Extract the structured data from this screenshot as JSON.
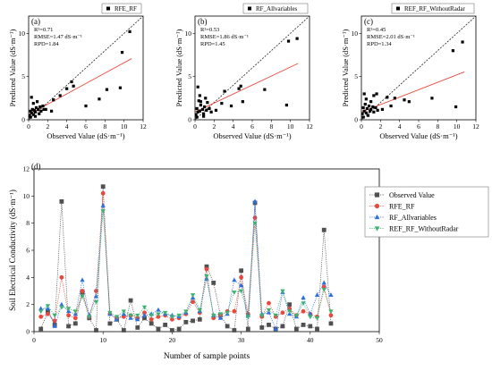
{
  "chart_data": [
    {
      "id": "a",
      "type": "scatter",
      "panel_label": "(a)",
      "legend": "RFE_RF",
      "stats": [
        "R²=0.71",
        "RMSE=1.47 dS·m⁻¹",
        "RPD=1.84"
      ],
      "xlabel": "Observed Value (dS·m⁻¹)",
      "ylabel": "Predicted Value (dS·m⁻¹)",
      "xlim": [
        0,
        12
      ],
      "ylim": [
        0,
        12
      ],
      "xticks": [
        0,
        2,
        4,
        6,
        8,
        10,
        12
      ],
      "yticks": [
        0,
        5,
        10
      ],
      "one_to_one_line": true,
      "fit_line": {
        "slope": 0.6,
        "intercept": 0.6,
        "color": "#e8493e"
      },
      "points": [
        [
          0.1,
          0.5
        ],
        [
          0.2,
          1.0
        ],
        [
          0.3,
          0.8
        ],
        [
          0.4,
          1.2
        ],
        [
          0.5,
          0.6
        ],
        [
          0.6,
          1.1
        ],
        [
          0.7,
          0.9
        ],
        [
          0.8,
          1.4
        ],
        [
          1.0,
          1.2
        ],
        [
          1.1,
          0.7
        ],
        [
          1.2,
          1.5
        ],
        [
          1.3,
          1.0
        ],
        [
          1.5,
          1.6
        ],
        [
          1.6,
          1.2
        ],
        [
          0.3,
          2.6
        ],
        [
          0.5,
          1.9
        ],
        [
          0.9,
          2.1
        ],
        [
          1.8,
          1.2
        ],
        [
          2.4,
          1.0
        ],
        [
          2.6,
          2.3
        ],
        [
          3.3,
          2.8
        ],
        [
          4.0,
          3.6
        ],
        [
          4.5,
          4.4
        ],
        [
          4.7,
          3.9
        ],
        [
          6.0,
          1.6
        ],
        [
          7.4,
          2.4
        ],
        [
          8.2,
          3.5
        ],
        [
          9.6,
          3.7
        ],
        [
          9.8,
          7.8
        ],
        [
          10.6,
          10.2
        ],
        [
          0.2,
          0.3
        ],
        [
          0.7,
          0.4
        ]
      ]
    },
    {
      "id": "b",
      "type": "scatter",
      "panel_label": "(b)",
      "legend": "RF_Allvariables",
      "stats": [
        "R²=0.53",
        "RMSE=1.86 dS·m⁻¹",
        "RPD=1.45"
      ],
      "xlabel": "Observed Value (dS·m⁻¹)",
      "ylabel": "Predicted Value (dS·m⁻¹)",
      "xlim": [
        0,
        12
      ],
      "ylim": [
        0,
        12
      ],
      "xticks": [
        0,
        2,
        4,
        6,
        8,
        10,
        12
      ],
      "yticks": [
        0,
        5,
        10
      ],
      "one_to_one_line": true,
      "fit_line": {
        "slope": 0.52,
        "intercept": 0.9,
        "color": "#e8493e"
      },
      "points": [
        [
          0.1,
          0.6
        ],
        [
          0.2,
          1.3
        ],
        [
          0.3,
          0.9
        ],
        [
          0.4,
          2.2
        ],
        [
          0.5,
          1.0
        ],
        [
          0.6,
          1.7
        ],
        [
          0.8,
          1.2
        ],
        [
          0.9,
          0.7
        ],
        [
          1.0,
          1.5
        ],
        [
          1.2,
          1.1
        ],
        [
          1.3,
          2.0
        ],
        [
          1.5,
          1.3
        ],
        [
          1.7,
          0.9
        ],
        [
          0.3,
          3.8
        ],
        [
          0.5,
          2.8
        ],
        [
          0.6,
          2.1
        ],
        [
          1.1,
          2.5
        ],
        [
          2.2,
          1.1
        ],
        [
          2.8,
          1.9
        ],
        [
          3.1,
          3.3
        ],
        [
          3.8,
          1.6
        ],
        [
          4.6,
          3.6
        ],
        [
          4.8,
          3.9
        ],
        [
          5.0,
          2.1
        ],
        [
          7.3,
          3.5
        ],
        [
          9.6,
          1.7
        ],
        [
          9.8,
          9.1
        ],
        [
          10.7,
          9.4
        ],
        [
          0.2,
          0.3
        ],
        [
          0.9,
          0.4
        ]
      ]
    },
    {
      "id": "c",
      "type": "scatter",
      "panel_label": "(c)",
      "legend": "REF_RF_WithoutRadar",
      "stats": [
        "R²=0.45",
        "RMSE=2.01 dS·m⁻¹",
        "RPD=1.34"
      ],
      "xlabel": "Observed Value (dS·m⁻¹)",
      "ylabel": "Predicted Value (dS·m⁻¹)",
      "xlim": [
        0,
        12
      ],
      "ylim": [
        0,
        12
      ],
      "xticks": [
        0,
        2,
        4,
        6,
        8,
        10,
        12
      ],
      "yticks": [
        0,
        5,
        10
      ],
      "one_to_one_line": true,
      "fit_line": {
        "slope": 0.43,
        "intercept": 0.9,
        "color": "#e8493e"
      },
      "points": [
        [
          0.1,
          0.7
        ],
        [
          0.2,
          1.4
        ],
        [
          0.3,
          1.0
        ],
        [
          0.4,
          1.8
        ],
        [
          0.5,
          0.8
        ],
        [
          0.6,
          1.3
        ],
        [
          0.8,
          1.6
        ],
        [
          0.9,
          1.0
        ],
        [
          1.0,
          1.2
        ],
        [
          1.2,
          1.5
        ],
        [
          1.3,
          0.9
        ],
        [
          1.5,
          1.4
        ],
        [
          1.7,
          1.1
        ],
        [
          0.3,
          3.0
        ],
        [
          0.5,
          2.4
        ],
        [
          1.0,
          2.1
        ],
        [
          1.3,
          2.8
        ],
        [
          1.6,
          3.0
        ],
        [
          2.2,
          1.2
        ],
        [
          2.7,
          2.6
        ],
        [
          3.1,
          1.6
        ],
        [
          3.5,
          2.5
        ],
        [
          4.5,
          2.3
        ],
        [
          5.0,
          2.1
        ],
        [
          7.4,
          2.5
        ],
        [
          9.6,
          8.0
        ],
        [
          9.9,
          1.5
        ],
        [
          10.6,
          9.0
        ],
        [
          0.2,
          0.3
        ],
        [
          0.7,
          0.5
        ]
      ]
    },
    {
      "id": "d",
      "type": "line",
      "panel_label": "(d)",
      "xlabel": "Number of sample points",
      "ylabel": "Soil Electrical Conductivity (dS·m⁻¹)",
      "xlim": [
        0,
        50
      ],
      "ylim": [
        0,
        12
      ],
      "xticks": [
        0,
        10,
        20,
        30,
        40,
        50
      ],
      "yticks": [
        0,
        2,
        4,
        6,
        8,
        10,
        12
      ],
      "legend_position": "top-right",
      "x": [
        1,
        2,
        3,
        4,
        5,
        6,
        7,
        8,
        9,
        10,
        11,
        12,
        13,
        14,
        15,
        16,
        17,
        18,
        19,
        20,
        21,
        22,
        23,
        24,
        25,
        26,
        27,
        28,
        29,
        30,
        31,
        32,
        33,
        34,
        35,
        36,
        37,
        38,
        39,
        40,
        41,
        42,
        43
      ],
      "series": [
        {
          "name": "Observed Value",
          "marker": "square",
          "color": "#505050",
          "values": [
            0.2,
            1.5,
            0.5,
            9.6,
            0.4,
            0.6,
            2.9,
            1.0,
            0.1,
            10.7,
            0.6,
            0.9,
            0.1,
            2.3,
            0.3,
            1.0,
            0.6,
            0.2,
            0.5,
            0.1,
            0.2,
            0.7,
            0.8,
            0.9,
            4.8,
            3.6,
            1.2,
            0.4,
            0.1,
            4.5,
            0.2,
            9.5,
            0.3,
            0.5,
            0.2,
            0.4,
            2.0,
            0.2,
            0.5,
            0.4,
            0.2,
            7.5,
            0.6
          ]
        },
        {
          "name": "RFE_RF",
          "marker": "circle",
          "color": "#e8493e",
          "values": [
            1.1,
            1.3,
            0.8,
            4.0,
            1.2,
            1.0,
            3.0,
            1.1,
            3.0,
            10.2,
            1.3,
            1.0,
            1.1,
            1.2,
            1.0,
            1.4,
            0.9,
            1.1,
            1.2,
            0.9,
            1.0,
            1.3,
            2.2,
            1.4,
            4.6,
            1.0,
            1.2,
            1.5,
            1.5,
            4.0,
            1.3,
            8.4,
            1.1,
            2.1,
            1.1,
            1.4,
            1.7,
            1.2,
            1.5,
            1.3,
            1.1,
            3.3,
            1.2
          ]
        },
        {
          "name": "RF_Allvariables",
          "marker": "triangle-up",
          "color": "#2c6fe0",
          "values": [
            1.7,
            1.7,
            0.4,
            2.0,
            1.5,
            1.3,
            3.8,
            1.2,
            2.6,
            9.3,
            1.3,
            0.9,
            1.3,
            1.0,
            0.9,
            1.2,
            1.3,
            1.6,
            1.3,
            1.2,
            1.1,
            1.4,
            2.5,
            1.5,
            3.9,
            1.2,
            1.0,
            1.3,
            3.8,
            3.4,
            1.2,
            9.6,
            1.3,
            1.4,
            0.2,
            2.9,
            1.3,
            1.1,
            2.5,
            1.3,
            2.7,
            3.6,
            2.7
          ]
        },
        {
          "name": "REF_RF_WithoutRadar",
          "marker": "triangle-down",
          "color": "#3cb371",
          "values": [
            1.5,
            1.9,
            1.2,
            1.8,
            1.7,
            1.5,
            2.6,
            1.1,
            2.2,
            8.9,
            1.4,
            1.1,
            1.5,
            1.2,
            1.2,
            1.8,
            1.2,
            1.3,
            1.4,
            1.1,
            1.2,
            1.5,
            2.7,
            1.6,
            4.1,
            1.2,
            1.3,
            1.4,
            2.9,
            3.0,
            1.1,
            8.0,
            1.2,
            1.6,
            1.2,
            3.0,
            1.5,
            1.2,
            2.1,
            1.1,
            1.0,
            3.1,
            1.5
          ]
        }
      ]
    }
  ]
}
